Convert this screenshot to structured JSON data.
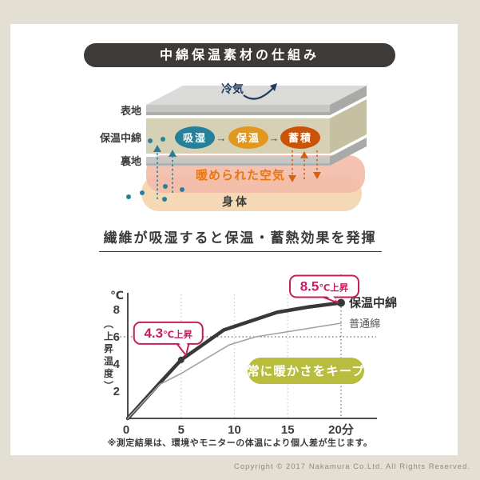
{
  "frame": {
    "bg_color": "#e3e0d3",
    "panel_color": "#ffffff"
  },
  "title": {
    "text": "中綿保温素材の仕組み",
    "bg_color": "#3d3a38",
    "text_color": "#ffffff"
  },
  "diagram": {
    "cold_air_label": "冷気",
    "cold_air_color": "#1f3c5e",
    "layer_labels": {
      "outer": "表地",
      "padding": "保温中綿",
      "lining": "裏地"
    },
    "pills": [
      {
        "label": "吸湿",
        "color": "#27809b"
      },
      {
        "label": "保温",
        "color": "#e2971f"
      },
      {
        "label": "蓄積",
        "color": "#cb5206"
      }
    ],
    "pill_arrow": "→",
    "warmed_air_label": "暖められた空気",
    "warmed_air_text_color": "#ea7511",
    "body_label": "身体",
    "moisture_color": "#27809b",
    "heat_color": "#d75f10",
    "pink_blob_color": "#f3bba8",
    "peach_blob_color": "#f5d9b6"
  },
  "subtitle": "繊維が吸湿すると保温・蓄熱効果を発揮",
  "chart_data": {
    "type": "line",
    "y_unit": "℃",
    "x_unit": "分",
    "ylabel": "（上昇温度）",
    "x_ticks": [
      0,
      5,
      10,
      15,
      20
    ],
    "y_ticks": [
      2,
      4,
      6,
      8
    ],
    "xlim": [
      0,
      22
    ],
    "ylim": [
      0,
      9.2
    ],
    "grid": {
      "vertical_dotted_at": [
        5,
        10,
        15,
        20
      ],
      "horizontal_dotted_at": 6
    },
    "series": [
      {
        "name": "保温中綿",
        "color": "#383838",
        "x": [
          0,
          3,
          5,
          9,
          14,
          17,
          20
        ],
        "values": [
          0,
          2.6,
          4.3,
          6.5,
          7.8,
          8.2,
          8.5
        ]
      },
      {
        "name": "普通綿",
        "color": "#a3a3a3",
        "x": [
          0,
          3,
          5,
          9.5,
          12,
          20
        ],
        "values": [
          0,
          2.5,
          3.3,
          5.4,
          6.0,
          7.0
        ]
      }
    ],
    "annotations": [
      {
        "value": "4.3",
        "suffix": "℃上昇",
        "at_x": 5,
        "at_y": 4.3
      },
      {
        "value": "8.5",
        "suffix": "℃上昇",
        "at_x": 20,
        "at_y": 8.5
      }
    ],
    "annotation_color": "#c51e5f",
    "badge": "常に暖かさをキープ",
    "badge_color": "#b9bd3d"
  },
  "note": "※測定結果は、環境やモニターの体温により個人差が生じます。",
  "copyright": "Copyright © 2017 Nakamura Co.Ltd. All Rights Reserved."
}
